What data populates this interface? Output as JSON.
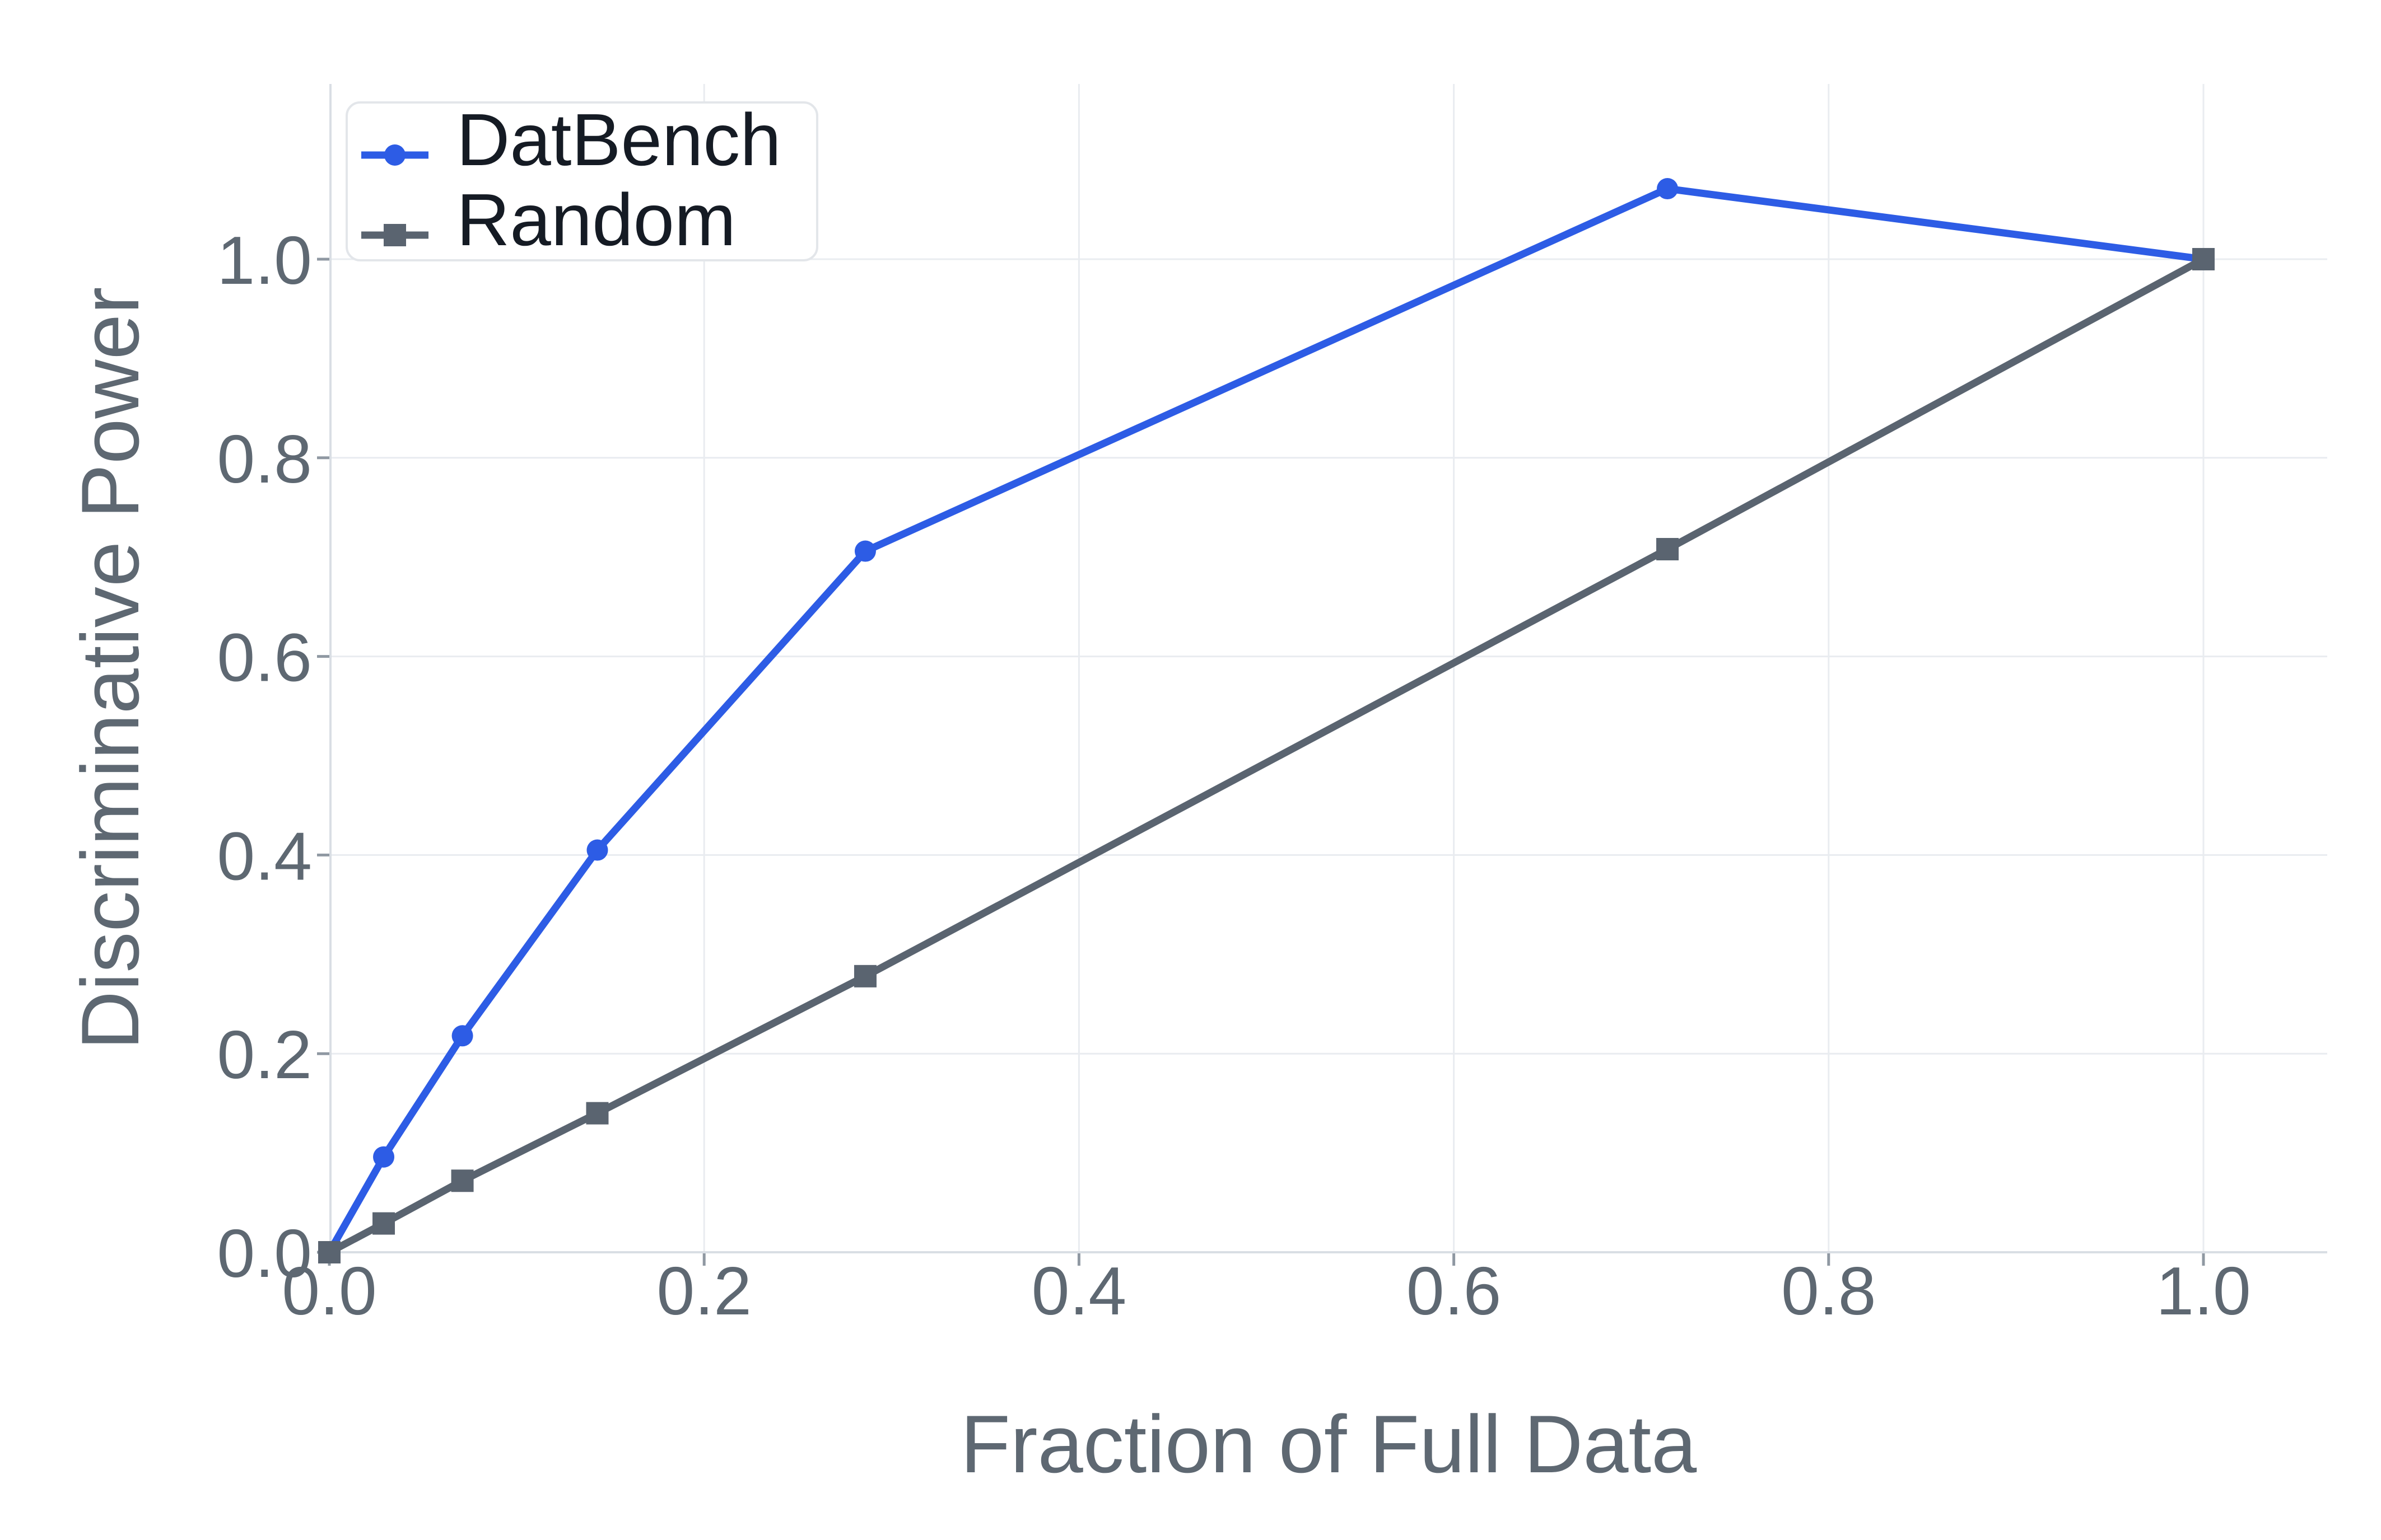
{
  "chart_data": {
    "type": "line",
    "title": "",
    "xlabel": "Fraction of Full Data",
    "ylabel": "Discriminative Power",
    "x": [
      0.0,
      0.029,
      0.071,
      0.143,
      0.286,
      0.714,
      1.0
    ],
    "series": [
      {
        "name": "DatBench",
        "marker": "circle",
        "color": "#2d5ce5",
        "values": [
          0.0,
          0.096,
          0.218,
          0.405,
          0.706,
          1.071,
          1.0
        ]
      },
      {
        "name": "Random",
        "marker": "square",
        "color": "#5a6470",
        "values": [
          0.0,
          0.029,
          0.072,
          0.14,
          0.278,
          0.708,
          1.0
        ]
      }
    ],
    "x_ticks": {
      "values": [
        0.0,
        0.2,
        0.4,
        0.6,
        0.8,
        1.0
      ],
      "labels": [
        "0.0",
        "0.2",
        "0.4",
        "0.6",
        "0.8",
        "1.0"
      ]
    },
    "y_ticks": {
      "values": [
        0.0,
        0.2,
        0.4,
        0.6,
        0.8,
        1.0
      ],
      "labels": [
        "0.0",
        "0.2",
        "0.4",
        "0.6",
        "0.8",
        "1.0"
      ]
    },
    "xlim": [
      0.0,
      1.066
    ],
    "ylim": [
      0.0,
      1.177
    ],
    "grid": true,
    "legend_position": "top-left",
    "colors": {
      "grid": "#e9ecf0",
      "spine": "#d9dee4",
      "tick_mark": "#8f98a2",
      "axis_text": "#5e6872",
      "legend_text": "#151b24",
      "legend_border": "#e3e6ea",
      "background": "#ffffff"
    }
  }
}
